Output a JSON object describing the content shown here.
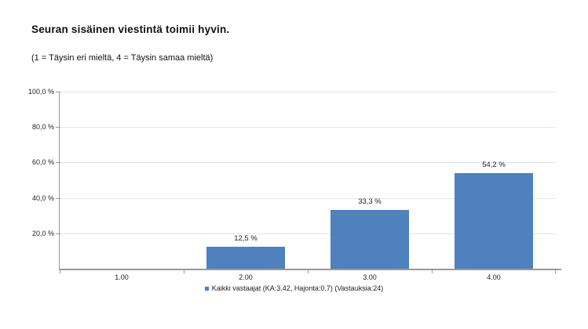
{
  "title": "Seuran sisäinen viestintä toimii hyvin.",
  "subtitle": "(1 = Täysin eri mieltä, 4 = Täysin samaa mieltä)",
  "legend": {
    "label": "Kaikki vastaajat (KA:3.42, Hajonta:0.7) (Vastauksia:24)",
    "marker_color": "#4e81bd"
  },
  "chart_data": {
    "type": "bar",
    "title": "Seuran sisäinen viestintä toimii hyvin.",
    "subtitle": "(1 = Täysin eri mieltä, 4 = Täysin samaa mieltä)",
    "categories": [
      "1.00",
      "2.00",
      "3.00",
      "4.00"
    ],
    "values": [
      0,
      12.5,
      33.3,
      54.2
    ],
    "value_labels": [
      "",
      "12,5 %",
      "33,3 %",
      "54,2 %"
    ],
    "series_name": "Kaikki vastaajat (KA:3.42, Hajonta:0.7) (Vastauksia:24)",
    "xlabel": "",
    "ylabel": "",
    "ylim": [
      0,
      100
    ],
    "y_ticks": [
      20,
      40,
      60,
      80,
      100
    ],
    "y_tick_labels": [
      "20,0 %",
      "40,0 %",
      "60,0 %",
      "80,0 %",
      "100,0 %"
    ],
    "grid": true,
    "legend_position": "bottom",
    "colors": {
      "bar": "#4e81bd",
      "gridline": "#dce6f2",
      "axis": "#999999",
      "text": "#222222"
    }
  }
}
